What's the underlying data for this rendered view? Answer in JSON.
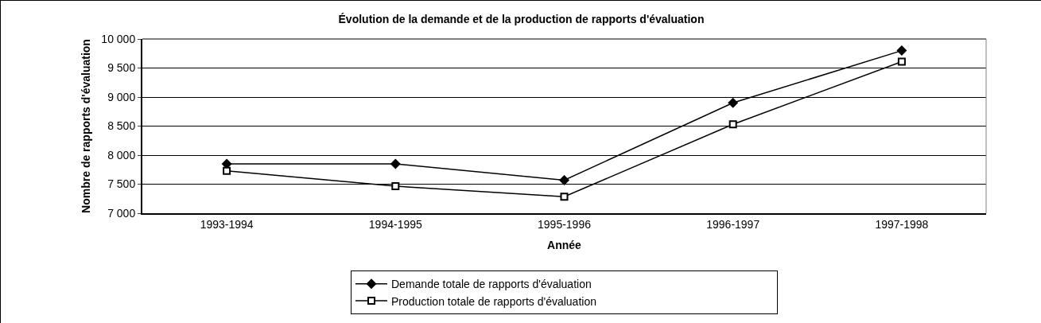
{
  "chart_data": {
    "type": "line",
    "title": "Évolution de la demande et de la production de rapports d'évaluation",
    "xlabel": "Année",
    "ylabel": "Nombre de rapports d'évaluation",
    "categories": [
      "1993-1994",
      "1994-1995",
      "1995-1996",
      "1996-1997",
      "1997-1998"
    ],
    "series": [
      {
        "name": "Demande totale de rapports d'évaluation",
        "color": "#000000",
        "marker": "diamond",
        "values": [
          7850,
          7850,
          7570,
          8900,
          9800
        ]
      },
      {
        "name": "Production totale de rapports d'évaluation",
        "color": "#000000",
        "marker": "square",
        "values": [
          7730,
          7465,
          7285,
          8530,
          9610
        ]
      }
    ],
    "ylim": [
      7000,
      10000
    ],
    "yticks": [
      {
        "value": 7000,
        "label": "7 000"
      },
      {
        "value": 7500,
        "label": "7 500"
      },
      {
        "value": 8000,
        "label": "8 000"
      },
      {
        "value": 8500,
        "label": "8 500"
      },
      {
        "value": 9000,
        "label": "9 000"
      },
      {
        "value": 9500,
        "label": "9 500"
      },
      {
        "value": 10000,
        "label": "10 000"
      }
    ],
    "grid": "y",
    "legend": "bottom",
    "line_style": "solid"
  }
}
